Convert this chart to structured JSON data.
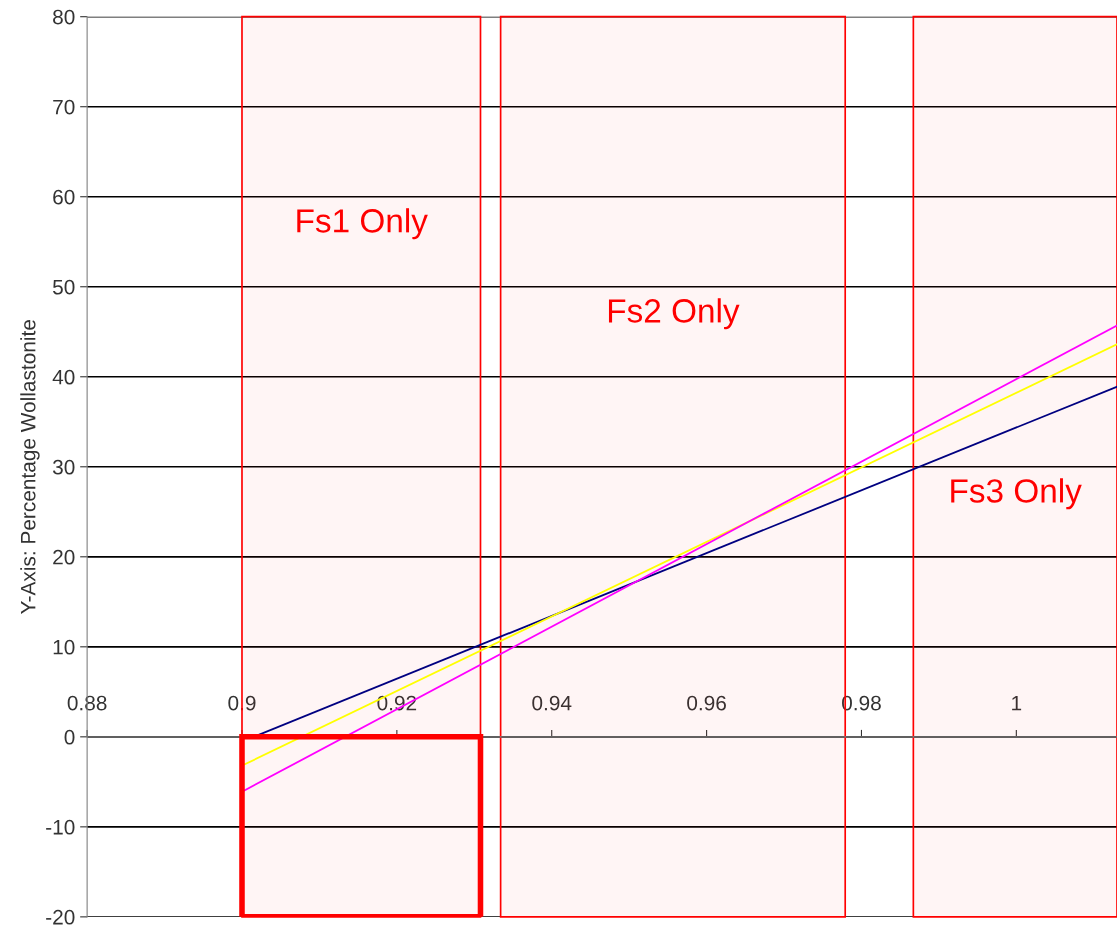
{
  "chart_data": {
    "type": "line",
    "ylabel": "Y-Axis: Percentage Wollastonite",
    "series": [
      {
        "color": "#000080",
        "x": [
          0.9015,
          1.013
        ],
        "values": [
          0,
          38.9
        ]
      },
      {
        "color": "#ffff00",
        "x": [
          0.9,
          1.013
        ],
        "values": [
          -3.2,
          43.6
        ]
      },
      {
        "color": "#ff00ff",
        "x": [
          0.9,
          1.013
        ],
        "values": [
          -6.1,
          45.7
        ]
      }
    ],
    "bands": [
      {
        "axis": "x",
        "from": 0.9,
        "to": 0.9308,
        "color": "#ff0000",
        "label": "Fs1 Only"
      },
      {
        "axis": "x",
        "from": 0.9334,
        "to": 0.9779,
        "color": "#ff0000",
        "label": "Fs2 Only"
      },
      {
        "axis": "x",
        "from": 0.9867,
        "to": 1.013,
        "color": "#ff0000",
        "label": "Fs3 Only"
      }
    ],
    "xlim": [
      0.88,
      1.013
    ],
    "ylim": [
      -20,
      80
    ],
    "xticks": [
      0.88,
      0.9,
      0.92,
      0.94,
      0.96,
      0.98,
      1
    ],
    "yticks": [
      -20,
      -10,
      0,
      10,
      20,
      30,
      40,
      50,
      60,
      70,
      80
    ],
    "grid": "y",
    "marker": "none",
    "line_style": "solid",
    "legend": false
  }
}
